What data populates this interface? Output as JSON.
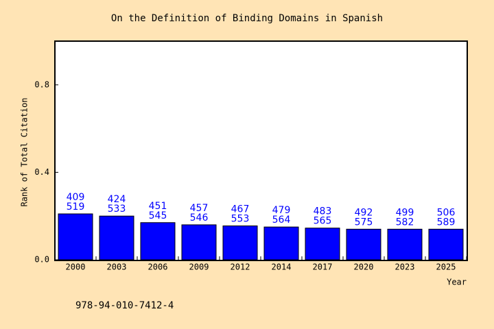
{
  "chart_data": {
    "type": "bar",
    "title": "On the Definition of Binding Domains in Spanish",
    "x_label": "Year",
    "y_label": "Rank of Total Citation",
    "categories": [
      "2000",
      "2003",
      "2006",
      "2009",
      "2012",
      "2014",
      "2017",
      "2020",
      "2023",
      "2025"
    ],
    "values": [
      0.21,
      0.2,
      0.17,
      0.16,
      0.155,
      0.15,
      0.145,
      0.14,
      0.14,
      0.14
    ],
    "bar_labels": [
      [
        409,
        519
      ],
      [
        424,
        533
      ],
      [
        451,
        545
      ],
      [
        457,
        546
      ],
      [
        467,
        553
      ],
      [
        479,
        564
      ],
      [
        483,
        565
      ],
      [
        492,
        575
      ],
      [
        499,
        582
      ],
      [
        506,
        589
      ]
    ],
    "color": "#0000ff",
    "label_color": "#0000ff",
    "ylim": [
      0,
      1
    ],
    "yticks": [
      {
        "value": 0,
        "label": "0.0"
      },
      0.4,
      0.8
    ],
    "grid": false,
    "footnote": "978-94-010-7412-4"
  }
}
